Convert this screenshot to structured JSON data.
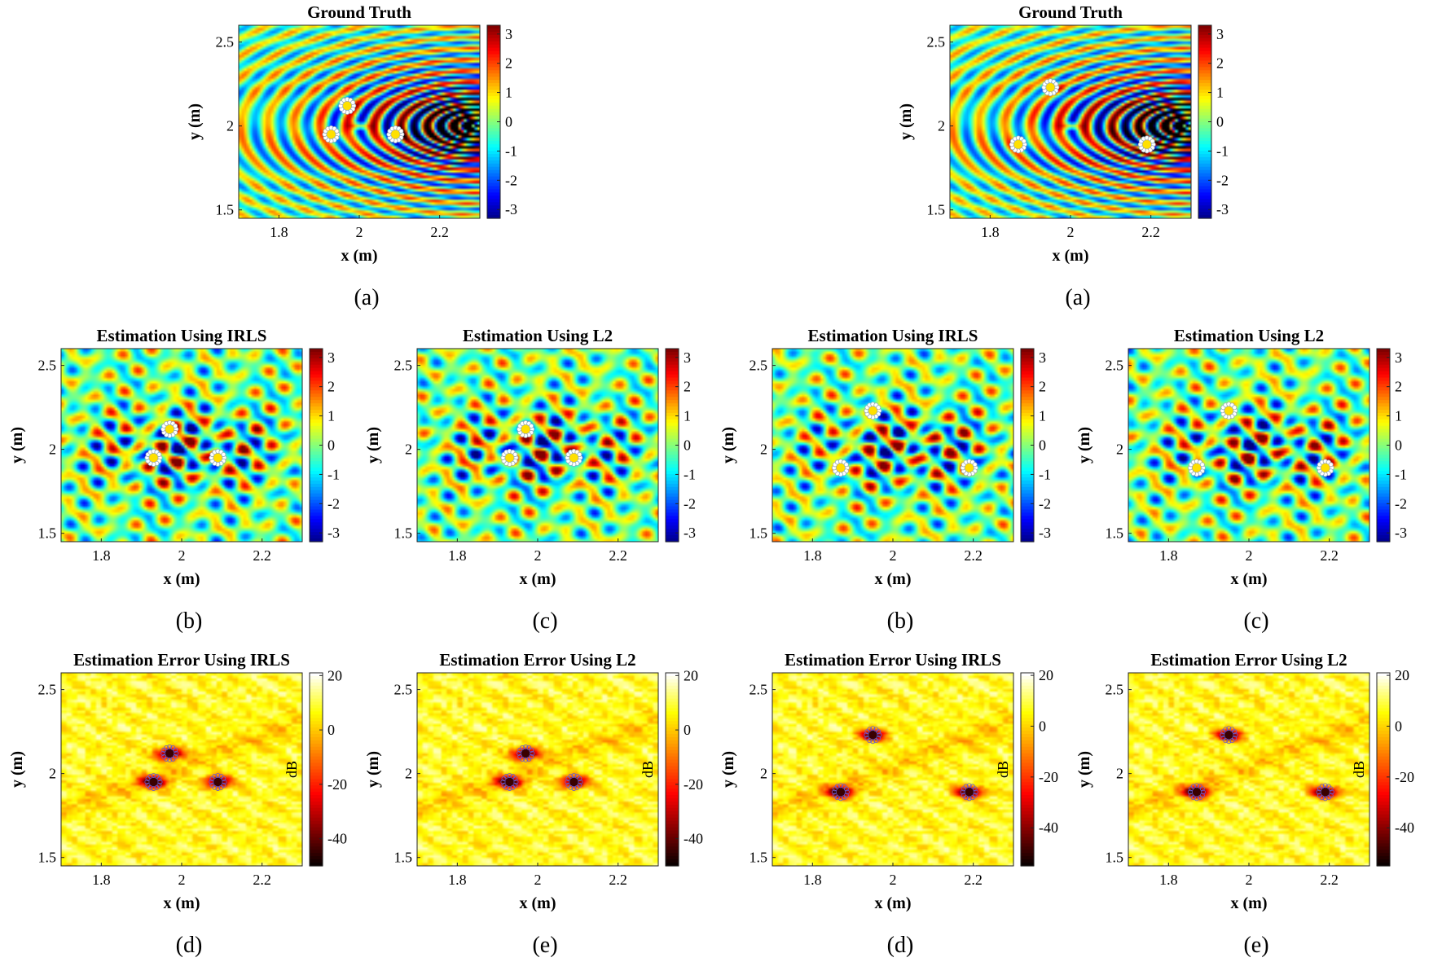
{
  "chart_data": [
    {
      "id": "gt-left",
      "type": "heatmap",
      "variant": "field",
      "title": "Ground Truth",
      "xlabel": "x (m)",
      "ylabel": "y (m)",
      "caption": "(a)",
      "xlim": [
        1.7,
        2.3
      ],
      "ylim": [
        1.45,
        2.6
      ],
      "x_ticks": [
        "1.8",
        "2",
        "2.2"
      ],
      "y_ticks": [
        "1.5",
        "2",
        "2.5"
      ],
      "colorbar": {
        "ticks": [
          "3",
          "2",
          "1",
          "0",
          "-1",
          "-2",
          "-3"
        ],
        "range": [
          -3.3,
          3.3
        ],
        "label": ""
      },
      "colormap": "jet",
      "sensors": [
        [
          1.93,
          1.95
        ],
        [
          1.97,
          2.12
        ],
        [
          2.09,
          1.95
        ]
      ]
    },
    {
      "id": "gt-right",
      "type": "heatmap",
      "variant": "field",
      "title": "Ground Truth",
      "xlabel": "x (m)",
      "ylabel": "y (m)",
      "caption": "(a)",
      "xlim": [
        1.7,
        2.3
      ],
      "ylim": [
        1.45,
        2.6
      ],
      "x_ticks": [
        "1.8",
        "2",
        "2.2"
      ],
      "y_ticks": [
        "1.5",
        "2",
        "2.5"
      ],
      "colorbar": {
        "ticks": [
          "3",
          "2",
          "1",
          "0",
          "-1",
          "-2",
          "-3"
        ],
        "range": [
          -3.3,
          3.3
        ],
        "label": ""
      },
      "colormap": "jet",
      "sensors": [
        [
          1.87,
          1.89
        ],
        [
          1.95,
          2.23
        ],
        [
          2.19,
          1.89
        ]
      ]
    },
    {
      "id": "irls-left",
      "type": "heatmap",
      "variant": "est",
      "title": "Estimation Using IRLS",
      "xlabel": "x (m)",
      "ylabel": "y (m)",
      "caption": "(b)",
      "xlim": [
        1.7,
        2.3
      ],
      "ylim": [
        1.45,
        2.6
      ],
      "x_ticks": [
        "1.8",
        "2",
        "2.2"
      ],
      "y_ticks": [
        "1.5",
        "2",
        "2.5"
      ],
      "colorbar": {
        "ticks": [
          "3",
          "2",
          "1",
          "0",
          "-1",
          "-2",
          "-3"
        ],
        "range": [
          -3.3,
          3.3
        ],
        "label": ""
      },
      "colormap": "jet",
      "sensors": [
        [
          1.93,
          1.95
        ],
        [
          1.97,
          2.12
        ],
        [
          2.09,
          1.95
        ]
      ]
    },
    {
      "id": "l2-left",
      "type": "heatmap",
      "variant": "est",
      "title": "Estimation Using L2",
      "xlabel": "x (m)",
      "ylabel": "y (m)",
      "caption": "(c)",
      "xlim": [
        1.7,
        2.3
      ],
      "ylim": [
        1.45,
        2.6
      ],
      "x_ticks": [
        "1.8",
        "2",
        "2.2"
      ],
      "y_ticks": [
        "1.5",
        "2",
        "2.5"
      ],
      "colorbar": {
        "ticks": [
          "3",
          "2",
          "1",
          "0",
          "-1",
          "-2",
          "-3"
        ],
        "range": [
          -3.3,
          3.3
        ],
        "label": ""
      },
      "colormap": "jet",
      "sensors": [
        [
          1.93,
          1.95
        ],
        [
          1.97,
          2.12
        ],
        [
          2.09,
          1.95
        ]
      ]
    },
    {
      "id": "irls-right",
      "type": "heatmap",
      "variant": "est",
      "title": "Estimation Using IRLS",
      "xlabel": "x (m)",
      "ylabel": "y (m)",
      "caption": "(b)",
      "xlim": [
        1.7,
        2.3
      ],
      "ylim": [
        1.45,
        2.6
      ],
      "x_ticks": [
        "1.8",
        "2",
        "2.2"
      ],
      "y_ticks": [
        "1.5",
        "2",
        "2.5"
      ],
      "colorbar": {
        "ticks": [
          "3",
          "2",
          "1",
          "0",
          "-1",
          "-2",
          "-3"
        ],
        "range": [
          -3.3,
          3.3
        ],
        "label": ""
      },
      "colormap": "jet",
      "sensors": [
        [
          1.87,
          1.89
        ],
        [
          1.95,
          2.23
        ],
        [
          2.19,
          1.89
        ]
      ]
    },
    {
      "id": "l2-right",
      "type": "heatmap",
      "variant": "est",
      "title": "Estimation Using L2",
      "xlabel": "x (m)",
      "ylabel": "y (m)",
      "caption": "(c)",
      "xlim": [
        1.7,
        2.3
      ],
      "ylim": [
        1.45,
        2.6
      ],
      "x_ticks": [
        "1.8",
        "2",
        "2.2"
      ],
      "y_ticks": [
        "1.5",
        "2",
        "2.5"
      ],
      "colorbar": {
        "ticks": [
          "3",
          "2",
          "1",
          "0",
          "-1",
          "-2",
          "-3"
        ],
        "range": [
          -3.3,
          3.3
        ],
        "label": ""
      },
      "colormap": "jet",
      "sensors": [
        [
          1.87,
          1.89
        ],
        [
          1.95,
          2.23
        ],
        [
          2.19,
          1.89
        ]
      ]
    },
    {
      "id": "err-irls-left",
      "type": "heatmap",
      "variant": "err",
      "title": "Estimation Error Using IRLS",
      "xlabel": "x (m)",
      "ylabel": "y (m)",
      "caption": "(d)",
      "xlim": [
        1.7,
        2.3
      ],
      "ylim": [
        1.45,
        2.6
      ],
      "x_ticks": [
        "1.8",
        "2",
        "2.2"
      ],
      "y_ticks": [
        "1.5",
        "2",
        "2.5"
      ],
      "colorbar": {
        "ticks": [
          "20",
          "0",
          "-20",
          "-40"
        ],
        "range": [
          -50,
          21
        ],
        "label": "dB"
      },
      "colormap": "hot",
      "sensors": [
        [
          1.93,
          1.95
        ],
        [
          1.97,
          2.12
        ],
        [
          2.09,
          1.95
        ]
      ]
    },
    {
      "id": "err-l2-left",
      "type": "heatmap",
      "variant": "err",
      "title": "Estimation Error Using L2",
      "xlabel": "x (m)",
      "ylabel": "y (m)",
      "caption": "(e)",
      "xlim": [
        1.7,
        2.3
      ],
      "ylim": [
        1.45,
        2.6
      ],
      "x_ticks": [
        "1.8",
        "2",
        "2.2"
      ],
      "y_ticks": [
        "1.5",
        "2",
        "2.5"
      ],
      "colorbar": {
        "ticks": [
          "20",
          "0",
          "-20",
          "-40"
        ],
        "range": [
          -50,
          21
        ],
        "label": "dB"
      },
      "colormap": "hot",
      "sensors": [
        [
          1.93,
          1.95
        ],
        [
          1.97,
          2.12
        ],
        [
          2.09,
          1.95
        ]
      ]
    },
    {
      "id": "err-irls-right",
      "type": "heatmap",
      "variant": "err",
      "title": "Estimation Error Using IRLS",
      "xlabel": "x (m)",
      "ylabel": "y (m)",
      "caption": "(d)",
      "xlim": [
        1.7,
        2.3
      ],
      "ylim": [
        1.45,
        2.6
      ],
      "x_ticks": [
        "1.8",
        "2",
        "2.2"
      ],
      "y_ticks": [
        "1.5",
        "2",
        "2.5"
      ],
      "colorbar": {
        "ticks": [
          "20",
          "0",
          "-20",
          "-40"
        ],
        "range": [
          -55,
          21
        ],
        "label": "dB"
      },
      "colormap": "hot",
      "sensors": [
        [
          1.87,
          1.89
        ],
        [
          1.95,
          2.23
        ],
        [
          2.19,
          1.89
        ]
      ]
    },
    {
      "id": "err-l2-right",
      "type": "heatmap",
      "variant": "err",
      "title": "Estimation Error Using L2",
      "xlabel": "x (m)",
      "ylabel": "y (m)",
      "caption": "(e)",
      "xlim": [
        1.7,
        2.3
      ],
      "ylim": [
        1.45,
        2.6
      ],
      "x_ticks": [
        "1.8",
        "2",
        "2.2"
      ],
      "y_ticks": [
        "1.5",
        "2",
        "2.5"
      ],
      "colorbar": {
        "ticks": [
          "20",
          "0",
          "-20",
          "-40"
        ],
        "range": [
          -55,
          21
        ],
        "label": "dB"
      },
      "colormap": "hot",
      "sensors": [
        [
          1.87,
          1.89
        ],
        [
          1.95,
          2.23
        ],
        [
          2.19,
          1.89
        ]
      ]
    }
  ]
}
